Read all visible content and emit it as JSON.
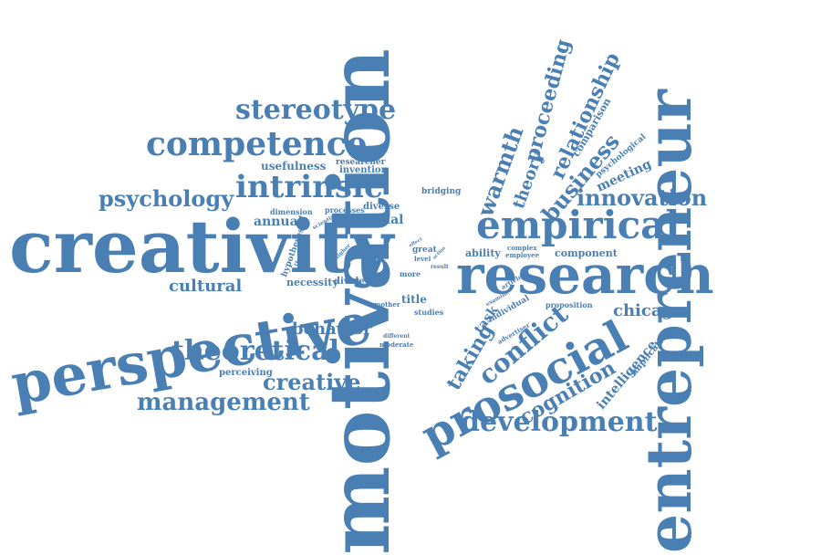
{
  "color": "#4a7fb3",
  "background": "#ffffff",
  "words": [
    "motivation",
    "creativity",
    "entrepreneur",
    "research",
    "perspective",
    "prosocial",
    "empirical",
    "competence",
    "intrinsic",
    "stereotype",
    "theoretical",
    "development",
    "management",
    "psychology",
    "innovation",
    "warmth",
    "relationship",
    "proceeding",
    "business",
    "theory",
    "conflict",
    "cognition",
    "creative",
    "behavior",
    "taking",
    "cultural",
    "chicago",
    "intelligence",
    "comparison",
    "psychological",
    "meeting",
    "usefulness",
    "researcher",
    "invention",
    "bridging",
    "annual",
    "social",
    "diverse",
    "processes",
    "dimension",
    "scientist",
    "hypotheses",
    "theories",
    "higher",
    "necessity",
    "divide",
    "other",
    "apart",
    "great",
    "level",
    "effect",
    "more",
    "ability",
    "complex",
    "employee",
    "component",
    "article",
    "examine",
    "individual",
    "advertiser",
    "task",
    "proposition",
    "implication",
    "title",
    "mother",
    "studies",
    "different",
    "moderate",
    "perceiving",
    "result",
    "action"
  ]
}
